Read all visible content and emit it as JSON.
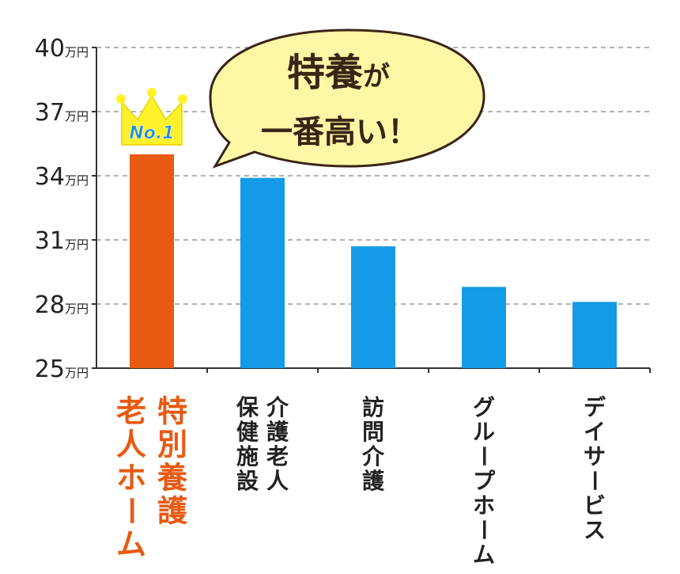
{
  "chart_data": {
    "type": "bar",
    "unit": "万円",
    "ylim": [
      25,
      40
    ],
    "yticks": [
      "25",
      "28",
      "31",
      "34",
      "37",
      "40"
    ],
    "grid": true,
    "categories": [
      "特別養護老人ホーム",
      "介護老人保健施設",
      "訪問介護",
      "グループホーム",
      "デイサービス"
    ],
    "category_lines": [
      [
        "特別養護",
        "老人ホーム"
      ],
      [
        "介護老人",
        "保健施設"
      ],
      [
        "訪問介護"
      ],
      [
        "グループホーム"
      ],
      [
        "デイサービス"
      ]
    ],
    "values": [
      35.0,
      33.9,
      30.7,
      28.8,
      28.1
    ],
    "highlight_index": 0
  },
  "colors": {
    "highlight_bar": "#e85a12",
    "bar": "#149ae6",
    "highlight_label": "#e85a12",
    "label": "#222222",
    "grid": "#999999",
    "axis": "#333333",
    "crown": "#fff22a",
    "crown_text": "#1f8fd9",
    "bubble_fill": "#fff7a6",
    "bubble_stroke": "#3a2516"
  },
  "crown": {
    "text": "No.1",
    "icon": "crown-icon"
  },
  "callout": {
    "line1_big": "特養",
    "line1_small": "が",
    "line2": "一番高い！"
  }
}
